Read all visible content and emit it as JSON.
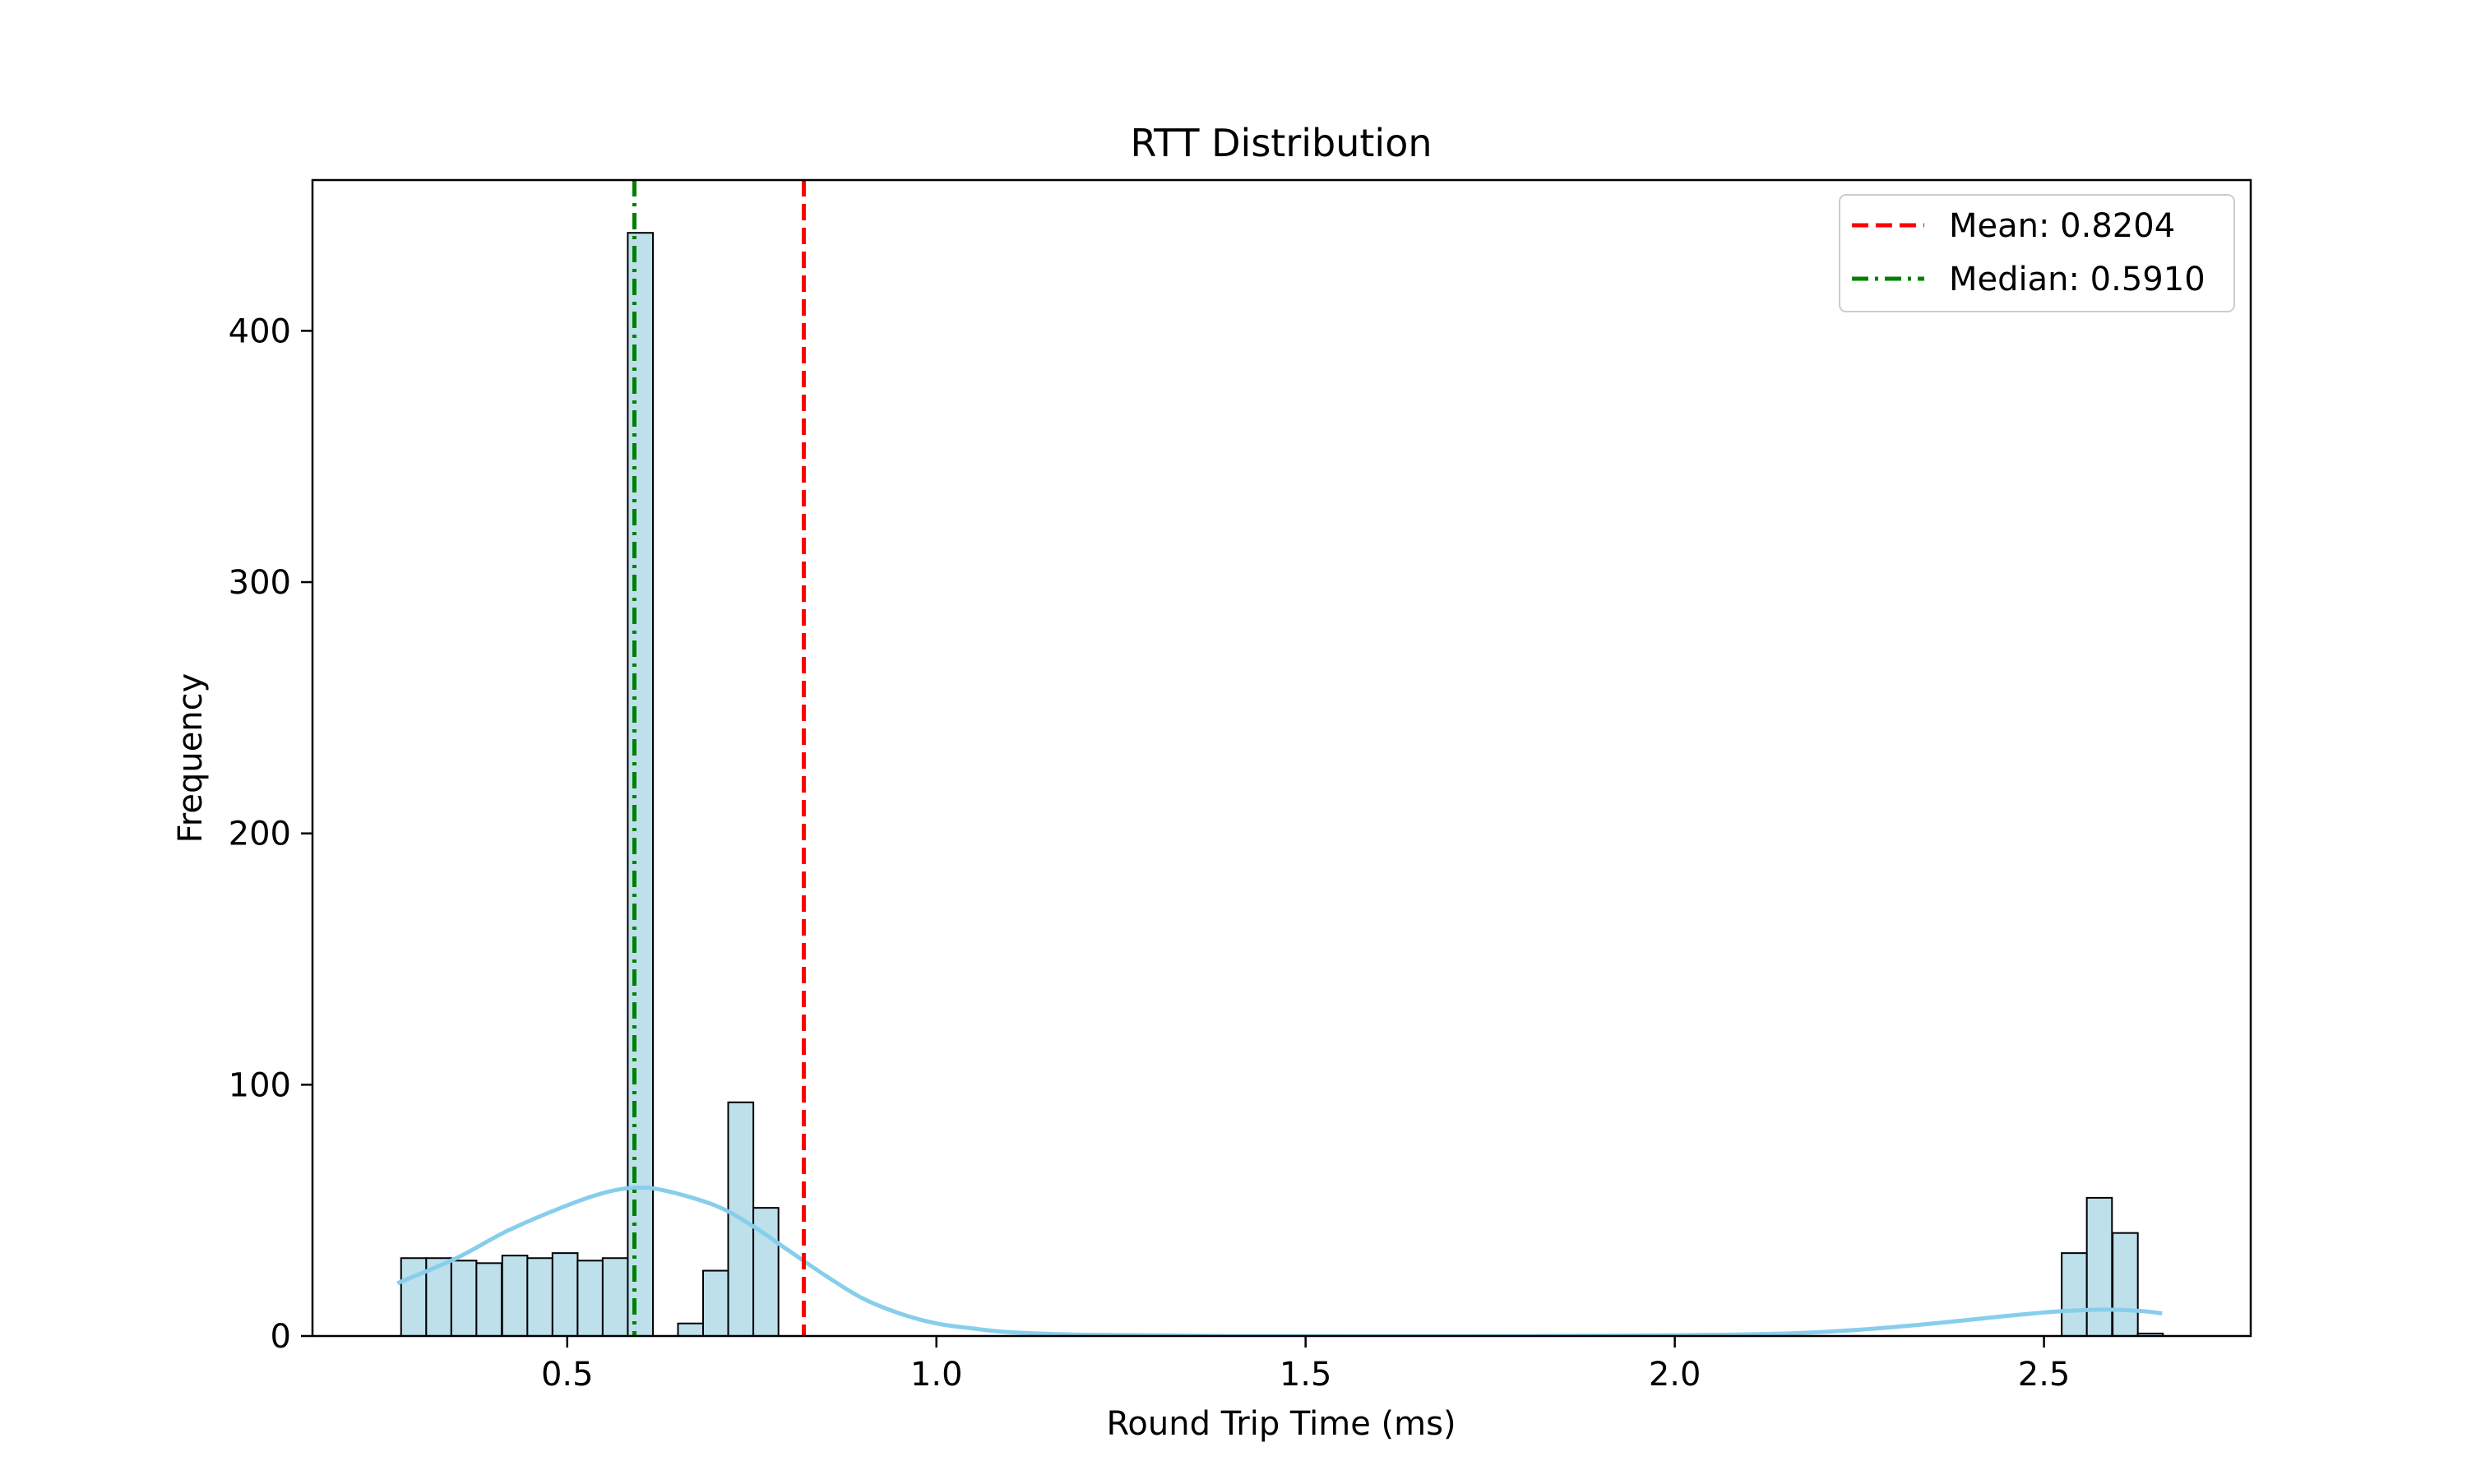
{
  "chart_data": {
    "type": "bar",
    "title": "RTT Distribution",
    "xlabel": "Round Trip Time (ms)",
    "ylabel": "Frequency",
    "xlim": [
      0.155,
      2.78
    ],
    "ylim": [
      0,
      460
    ],
    "xticks": [
      0.5,
      1.0,
      1.5,
      2.0,
      2.5
    ],
    "xtick_labels": [
      "0.5",
      "1.0",
      "1.5",
      "2.0",
      "2.5"
    ],
    "yticks": [
      0,
      100,
      200,
      300,
      400
    ],
    "ytick_labels": [
      "0",
      "100",
      "200",
      "300",
      "400"
    ],
    "grid": false,
    "legend_position": "upper right",
    "histogram": {
      "bin_width": 0.0341,
      "bins": [
        {
          "x0": 0.275,
          "count": 31
        },
        {
          "x0": 0.309,
          "count": 31
        },
        {
          "x0": 0.343,
          "count": 30
        },
        {
          "x0": 0.377,
          "count": 29
        },
        {
          "x0": 0.412,
          "count": 32
        },
        {
          "x0": 0.446,
          "count": 31
        },
        {
          "x0": 0.48,
          "count": 33
        },
        {
          "x0": 0.514,
          "count": 30
        },
        {
          "x0": 0.548,
          "count": 31
        },
        {
          "x0": 0.582,
          "count": 439
        },
        {
          "x0": 0.616,
          "count": 0
        },
        {
          "x0": 0.65,
          "count": 5
        },
        {
          "x0": 0.684,
          "count": 26
        },
        {
          "x0": 0.718,
          "count": 93
        },
        {
          "x0": 0.752,
          "count": 51
        },
        {
          "x0": 2.524,
          "count": 33
        },
        {
          "x0": 2.558,
          "count": 55
        },
        {
          "x0": 2.593,
          "count": 41
        },
        {
          "x0": 2.627,
          "count": 1
        }
      ],
      "fill_color": "#add8e6",
      "edge_color": "#000000"
    },
    "kde": {
      "color": "#87ceeb",
      "points": [
        [
          0.27,
          21
        ],
        [
          0.35,
          31
        ],
        [
          0.42,
          42
        ],
        [
          0.5,
          52
        ],
        [
          0.55,
          57
        ],
        [
          0.59,
          59
        ],
        [
          0.63,
          58
        ],
        [
          0.7,
          52
        ],
        [
          0.75,
          44
        ],
        [
          0.8,
          34
        ],
        [
          0.85,
          24
        ],
        [
          0.9,
          15
        ],
        [
          0.95,
          9
        ],
        [
          1.0,
          5
        ],
        [
          1.05,
          3
        ],
        [
          1.1,
          1.5
        ],
        [
          1.2,
          0.5
        ],
        [
          1.4,
          0
        ],
        [
          1.8,
          0
        ],
        [
          2.0,
          0.3
        ],
        [
          2.15,
          1.0
        ],
        [
          2.25,
          2.5
        ],
        [
          2.35,
          5
        ],
        [
          2.45,
          8
        ],
        [
          2.52,
          9.8
        ],
        [
          2.58,
          10.5
        ],
        [
          2.63,
          10
        ],
        [
          2.66,
          9
        ]
      ]
    },
    "reference_lines": [
      {
        "label": "Mean: 0.8204",
        "value": 0.8204,
        "color": "#ff0000",
        "style": "dashed"
      },
      {
        "label": "Median: 0.5910",
        "value": 0.591,
        "color": "#008000",
        "style": "dashdot"
      }
    ]
  }
}
